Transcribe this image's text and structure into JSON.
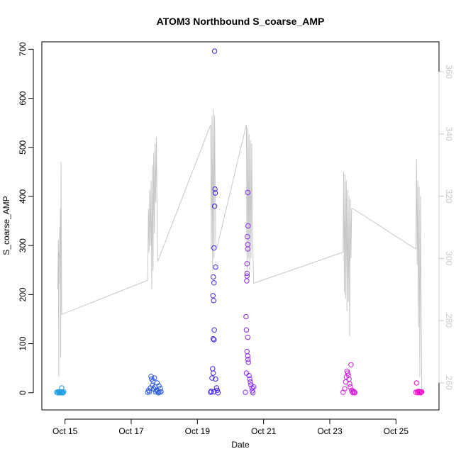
{
  "chart_data": {
    "type": "scatter",
    "title": "ATOM3 Northbound S_coarse_AMP",
    "xlabel": "Date",
    "ylabel": "S_coarse_AMP",
    "x_unit": "days (October)",
    "xlim": [
      14.3,
      26.3
    ],
    "ylim": [
      -35,
      715
    ],
    "y_right_lim": [
      251.3,
      369.6
    ],
    "x_ticks": [
      15,
      17,
      19,
      21,
      23,
      25
    ],
    "x_tick_labels": [
      "Oct 15",
      "Oct 17",
      "Oct 19",
      "Oct 21",
      "Oct 23",
      "Oct 25"
    ],
    "y_ticks": [
      0,
      100,
      200,
      300,
      400,
      500,
      600,
      700
    ],
    "y_right_ticks": [
      260,
      280,
      300,
      320,
      340,
      360
    ],
    "grid": false,
    "series": [
      {
        "type": "line",
        "color": "#c8c8c8",
        "axis": "right",
        "points": [
          [
            14.78,
            290.0
          ],
          [
            14.8,
            306.0
          ],
          [
            14.81,
            262.0
          ],
          [
            14.82,
            302.0
          ],
          [
            14.83,
            292.0
          ],
          [
            14.84,
            310.0
          ],
          [
            14.85,
            300.0
          ],
          [
            14.86,
            316.0
          ],
          [
            14.87,
            268.0
          ],
          [
            14.88,
            331.0
          ],
          [
            14.9,
            282.0
          ],
          [
            17.5,
            293.0
          ],
          [
            17.52,
            316.0
          ],
          [
            17.54,
            302.0
          ],
          [
            17.56,
            322.0
          ],
          [
            17.58,
            304.0
          ],
          [
            17.6,
            325.0
          ],
          [
            17.62,
            290.0
          ],
          [
            17.64,
            330.0
          ],
          [
            17.66,
            296.0
          ],
          [
            17.68,
            334.0
          ],
          [
            17.7,
            308.0
          ],
          [
            17.72,
            337.0
          ],
          [
            17.74,
            318.0
          ],
          [
            17.76,
            339.0
          ],
          [
            17.78,
            318.0
          ],
          [
            17.8,
            299.0
          ],
          [
            19.4,
            343.0
          ],
          [
            19.42,
            303.0
          ],
          [
            19.44,
            346.0
          ],
          [
            19.46,
            296.0
          ],
          [
            19.48,
            348.0
          ],
          [
            19.5,
            300.0
          ],
          [
            19.52,
            346.0
          ],
          [
            19.55,
            306.0
          ],
          [
            19.58,
            303.0
          ],
          [
            20.48,
            343.0
          ],
          [
            20.5,
            296.0
          ],
          [
            20.52,
            342.0
          ],
          [
            20.54,
            300.0
          ],
          [
            20.56,
            340.0
          ],
          [
            20.58,
            296.0
          ],
          [
            20.6,
            338.0
          ],
          [
            20.62,
            300.0
          ],
          [
            20.64,
            337.0
          ],
          [
            20.66,
            310.0
          ],
          [
            20.7,
            292.0
          ],
          [
            23.4,
            302.0
          ],
          [
            23.42,
            328.0
          ],
          [
            23.44,
            289.0
          ],
          [
            23.46,
            327.0
          ],
          [
            23.48,
            287.0
          ],
          [
            23.5,
            325.0
          ],
          [
            23.52,
            283.0
          ],
          [
            23.54,
            322.0
          ],
          [
            23.56,
            286.0
          ],
          [
            23.58,
            320.0
          ],
          [
            23.6,
            275.0
          ],
          [
            23.62,
            319.0
          ],
          [
            23.64,
            300.0
          ],
          [
            23.66,
            316.0
          ],
          [
            23.7,
            316.0
          ],
          [
            25.6,
            303.0
          ],
          [
            25.62,
            332.0
          ],
          [
            25.64,
            298.0
          ],
          [
            25.66,
            325.0
          ],
          [
            25.68,
            278.0
          ],
          [
            25.7,
            323.0
          ],
          [
            25.72,
            262.0
          ],
          [
            25.74,
            320.0
          ],
          [
            25.76,
            284.0
          ],
          [
            25.78,
            258.0
          ]
        ]
      },
      {
        "type": "scatter",
        "clusters": [
          {
            "color": "#1f9fe0",
            "points": [
              [
                14.75,
                1
              ],
              [
                14.78,
                0
              ],
              [
                14.8,
                2
              ],
              [
                14.82,
                1
              ],
              [
                14.84,
                0
              ],
              [
                14.86,
                1
              ],
              [
                14.88,
                2
              ],
              [
                14.9,
                0
              ],
              [
                14.92,
                1
              ],
              [
                14.94,
                0
              ],
              [
                14.96,
                2
              ],
              [
                14.9,
                10
              ]
            ]
          },
          {
            "color": "#2a5ae0",
            "points": [
              [
                17.5,
                1
              ],
              [
                17.52,
                5
              ],
              [
                17.55,
                2
              ],
              [
                17.58,
                10
              ],
              [
                17.6,
                33
              ],
              [
                17.62,
                28
              ],
              [
                17.64,
                15
              ],
              [
                17.66,
                24
              ],
              [
                17.68,
                8
              ],
              [
                17.7,
                30
              ],
              [
                17.72,
                12
              ],
              [
                17.74,
                2
              ],
              [
                17.76,
                5
              ],
              [
                17.78,
                20
              ],
              [
                17.8,
                3
              ],
              [
                17.82,
                0
              ],
              [
                17.84,
                14
              ],
              [
                17.86,
                1
              ],
              [
                17.88,
                9
              ],
              [
                17.9,
                2
              ]
            ]
          },
          {
            "color": "#4224e8",
            "points": [
              [
                19.4,
                1
              ],
              [
                19.42,
                3
              ],
              [
                19.44,
                30
              ],
              [
                19.46,
                49
              ],
              [
                19.48,
                40
              ],
              [
                19.5,
                2
              ],
              [
                19.52,
                696
              ],
              [
                19.53,
                415
              ],
              [
                19.54,
                407
              ],
              [
                19.52,
                380
              ],
              [
                19.5,
                295
              ],
              [
                19.55,
                256
              ],
              [
                19.48,
                236
              ],
              [
                19.5,
                224
              ],
              [
                19.47,
                198
              ],
              [
                19.49,
                188
              ],
              [
                19.51,
                128
              ],
              [
                19.48,
                110
              ],
              [
                19.5,
                108
              ],
              [
                19.55,
                28
              ],
              [
                19.58,
                10
              ],
              [
                19.6,
                5
              ],
              [
                19.62,
                0
              ]
            ]
          },
          {
            "color": "#8a2ae8",
            "points": [
              [
                20.45,
                1
              ],
              [
                20.47,
                155
              ],
              [
                20.48,
                128
              ],
              [
                20.5,
                263
              ],
              [
                20.5,
                243
              ],
              [
                20.5,
                238
              ],
              [
                20.49,
                228
              ],
              [
                20.51,
                318
              ],
              [
                20.52,
                302
              ],
              [
                20.52,
                293
              ],
              [
                20.53,
                340
              ],
              [
                20.52,
                408
              ],
              [
                20.52,
                113
              ],
              [
                20.5,
                84
              ],
              [
                20.52,
                75
              ],
              [
                20.53,
                68
              ],
              [
                20.54,
                62
              ],
              [
                20.48,
                40
              ],
              [
                20.56,
                35
              ],
              [
                20.58,
                28
              ],
              [
                20.6,
                22
              ],
              [
                20.62,
                16
              ],
              [
                20.65,
                10
              ],
              [
                20.66,
                4
              ],
              [
                20.68,
                0
              ],
              [
                20.7,
                12
              ]
            ]
          },
          {
            "color": "#d020d8",
            "points": [
              [
                23.4,
                1
              ],
              [
                23.45,
                8
              ],
              [
                23.48,
                22
              ],
              [
                23.5,
                32
              ],
              [
                23.52,
                44
              ],
              [
                23.54,
                40
              ],
              [
                23.56,
                36
              ],
              [
                23.58,
                28
              ],
              [
                23.6,
                18
              ],
              [
                23.62,
                12
              ],
              [
                23.64,
                57
              ],
              [
                23.66,
                5
              ],
              [
                23.68,
                2
              ],
              [
                23.7,
                0
              ],
              [
                23.72,
                3
              ],
              [
                23.74,
                1
              ],
              [
                23.76,
                0
              ]
            ]
          },
          {
            "color": "#f010d0",
            "points": [
              [
                25.6,
                1
              ],
              [
                25.62,
                20
              ],
              [
                25.64,
                2
              ],
              [
                25.66,
                0
              ],
              [
                25.68,
                3
              ],
              [
                25.7,
                1
              ],
              [
                25.72,
                2
              ],
              [
                25.74,
                0
              ],
              [
                25.76,
                1
              ],
              [
                25.78,
                2
              ]
            ]
          }
        ]
      }
    ]
  }
}
